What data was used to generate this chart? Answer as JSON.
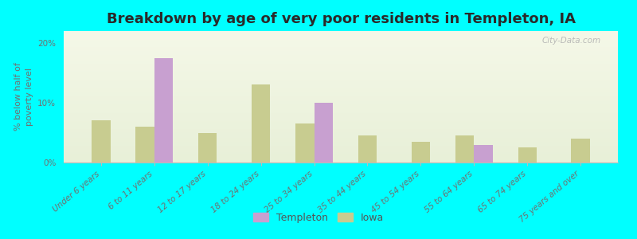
{
  "title": "Breakdown by age of very poor residents in Templeton, IA",
  "ylabel": "% below half of\npoverty level",
  "categories": [
    "Under 6 years",
    "6 to 11 years",
    "12 to 17 years",
    "18 to 24 years",
    "25 to 34 years",
    "35 to 44 years",
    "45 to 54 years",
    "55 to 64 years",
    "65 to 74 years",
    "75 years and over"
  ],
  "templeton_values": [
    null,
    17.5,
    null,
    null,
    10.0,
    null,
    null,
    3.0,
    null,
    null
  ],
  "iowa_values": [
    7.0,
    6.0,
    5.0,
    13.0,
    6.5,
    4.5,
    3.5,
    4.5,
    2.5,
    4.0
  ],
  "templeton_color": "#c8a0d0",
  "iowa_color": "#c8cc90",
  "background_color": "#00ffff",
  "ylim": [
    0,
    22
  ],
  "yticks": [
    0,
    10,
    20
  ],
  "ytick_labels": [
    "0%",
    "10%",
    "20%"
  ],
  "title_fontsize": 13,
  "axis_label_fontsize": 8,
  "tick_label_fontsize": 7.5,
  "legend_fontsize": 9,
  "bar_width": 0.35,
  "watermark": "City-Data.com"
}
